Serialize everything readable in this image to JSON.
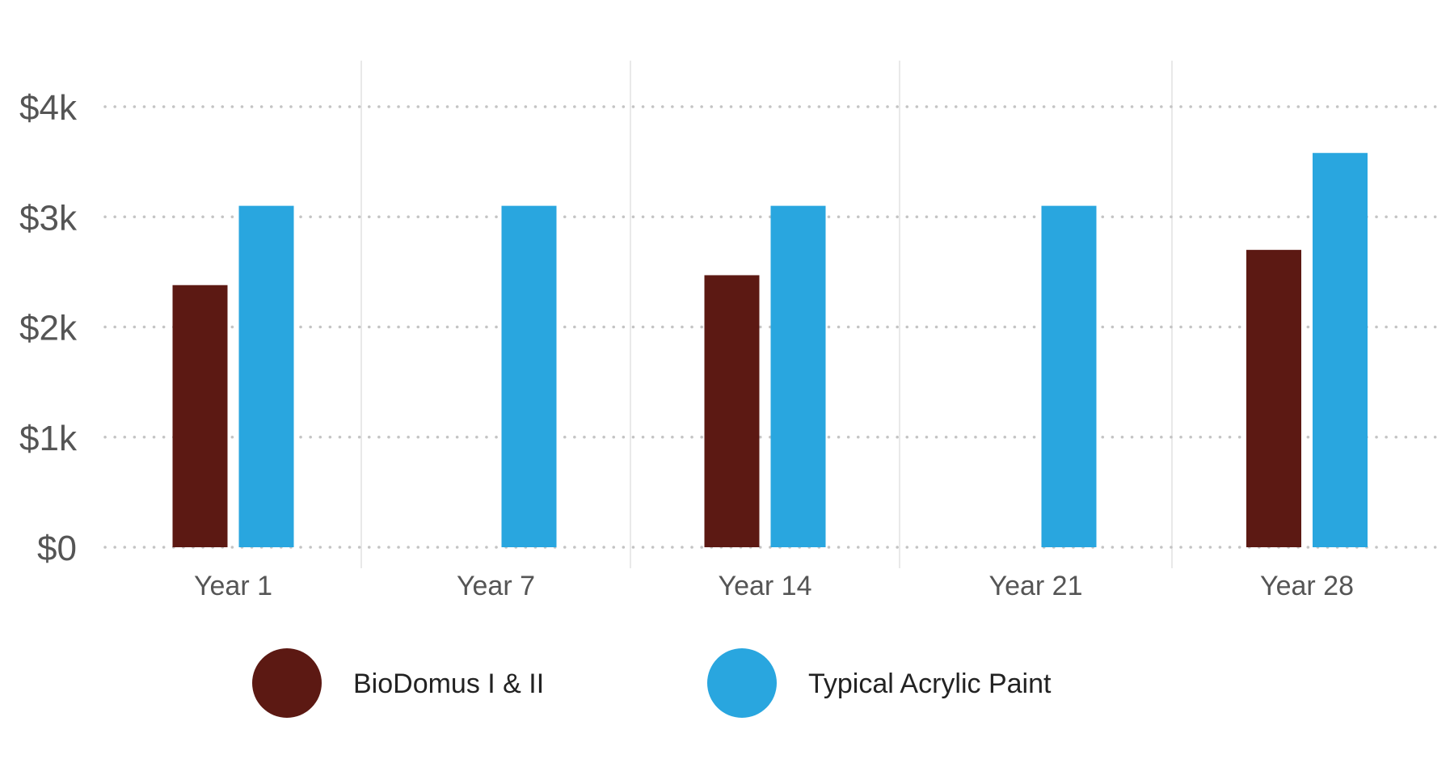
{
  "chart_data": {
    "type": "bar",
    "title": "",
    "xlabel": "",
    "ylabel": "",
    "categories": [
      "Year 1",
      "Year 7",
      "Year 14",
      "Year 21",
      "Year 28"
    ],
    "series": [
      {
        "name": "BioDomus I & II",
        "color": "#5c1913",
        "values": [
          2380,
          null,
          2470,
          null,
          2700
        ]
      },
      {
        "name": "Typical Acrylic Paint",
        "color": "#29a6df",
        "values": [
          3100,
          3100,
          3100,
          3100,
          3580
        ]
      }
    ],
    "ylim": [
      0,
      4000
    ],
    "y_ticks": [
      0,
      1000,
      2000,
      3000,
      4000
    ],
    "y_tick_labels": [
      "$0",
      "$1k",
      "$2k",
      "$3k",
      "$4k"
    ],
    "grid": {
      "horizontal": "dotted",
      "vertical_category_separators": true
    },
    "legend": {
      "position": "bottom-center"
    }
  }
}
